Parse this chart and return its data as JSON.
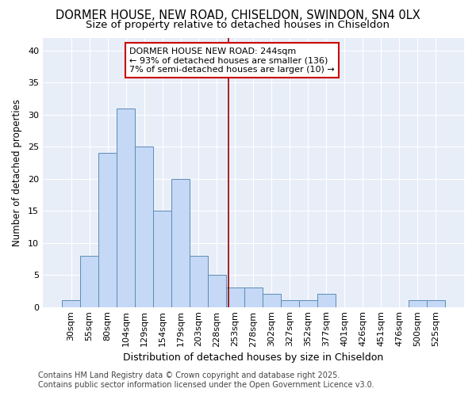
{
  "title_line1": "DORMER HOUSE, NEW ROAD, CHISELDON, SWINDON, SN4 0LX",
  "title_line2": "Size of property relative to detached houses in Chiseldon",
  "xlabel": "Distribution of detached houses by size in Chiseldon",
  "ylabel": "Number of detached properties",
  "bar_labels": [
    "30sqm",
    "55sqm",
    "80sqm",
    "104sqm",
    "129sqm",
    "154sqm",
    "179sqm",
    "203sqm",
    "228sqm",
    "253sqm",
    "278sqm",
    "302sqm",
    "327sqm",
    "352sqm",
    "377sqm",
    "401sqm",
    "426sqm",
    "451sqm",
    "476sqm",
    "500sqm",
    "525sqm"
  ],
  "bar_values": [
    1,
    8,
    24,
    31,
    25,
    15,
    20,
    8,
    5,
    3,
    3,
    2,
    1,
    1,
    2,
    0,
    0,
    0,
    0,
    1,
    1
  ],
  "bar_color": "#c5d8f5",
  "bar_edge_color": "#5b8db8",
  "fig_bg_color": "#ffffff",
  "ax_bg_color": "#e8eef8",
  "grid_color": "#ffffff",
  "marker_color": "#990000",
  "annotation_text": "DORMER HOUSE NEW ROAD: 244sqm\n← 93% of detached houses are smaller (136)\n7% of semi-detached houses are larger (10) →",
  "annotation_box_edge": "#cc0000",
  "ylim": [
    0,
    42
  ],
  "yticks": [
    0,
    5,
    10,
    15,
    20,
    25,
    30,
    35,
    40
  ],
  "title_fontsize": 10.5,
  "subtitle_fontsize": 9.5,
  "xlabel_fontsize": 9,
  "ylabel_fontsize": 8.5,
  "tick_fontsize": 8,
  "annotation_fontsize": 8,
  "footer_fontsize": 7,
  "footer_line1": "Contains HM Land Registry data © Crown copyright and database right 2025.",
  "footer_line2": "Contains public sector information licensed under the Open Government Licence v3.0."
}
